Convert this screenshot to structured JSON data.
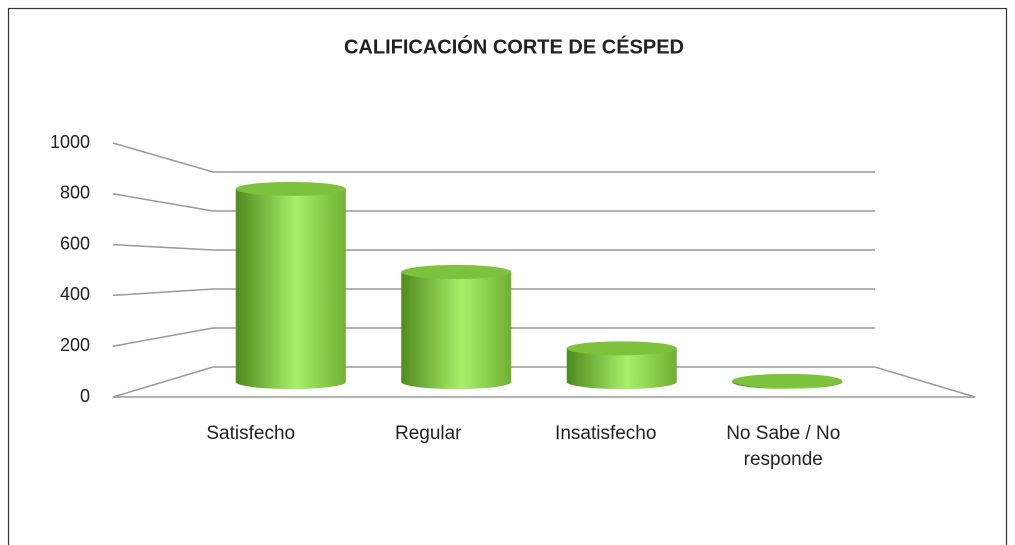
{
  "chart_data": {
    "type": "bar",
    "title": "CALIFICACIÓN CORTE DE CÉSPED",
    "categories": [
      "Satisfecho",
      "Regular",
      "Insatisfecho",
      "No Sabe / No responde"
    ],
    "values": [
      860,
      490,
      150,
      5
    ],
    "color": "#8cd04a",
    "ylim": [
      0,
      1000
    ],
    "yticks": [
      0,
      200,
      400,
      600,
      800,
      1000
    ],
    "grid": true
  }
}
